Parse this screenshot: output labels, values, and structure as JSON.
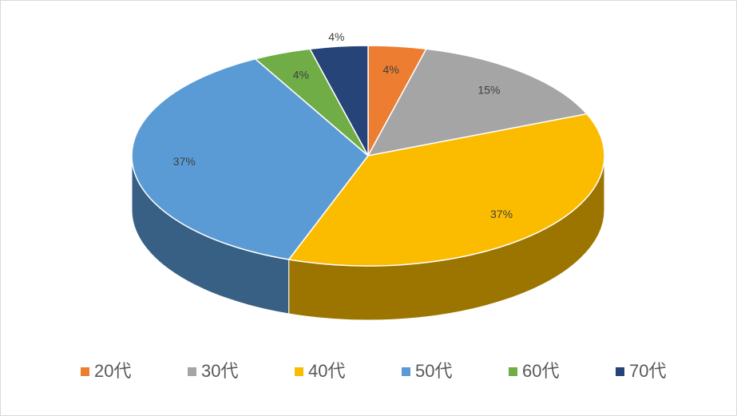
{
  "chart_data": {
    "type": "pie",
    "categories": [
      "20代",
      "30代",
      "40代",
      "50代",
      "60代",
      "70代"
    ],
    "values": [
      4,
      15,
      37,
      37,
      4,
      4
    ],
    "value_labels": [
      "4%",
      "15%",
      "37%",
      "37%",
      "4%",
      "4%"
    ],
    "colors": [
      "#ed7d31",
      "#a5a5a5",
      "#fbbc00",
      "#5b9bd5",
      "#70ad47",
      "#264478"
    ],
    "legend": "bottom"
  }
}
